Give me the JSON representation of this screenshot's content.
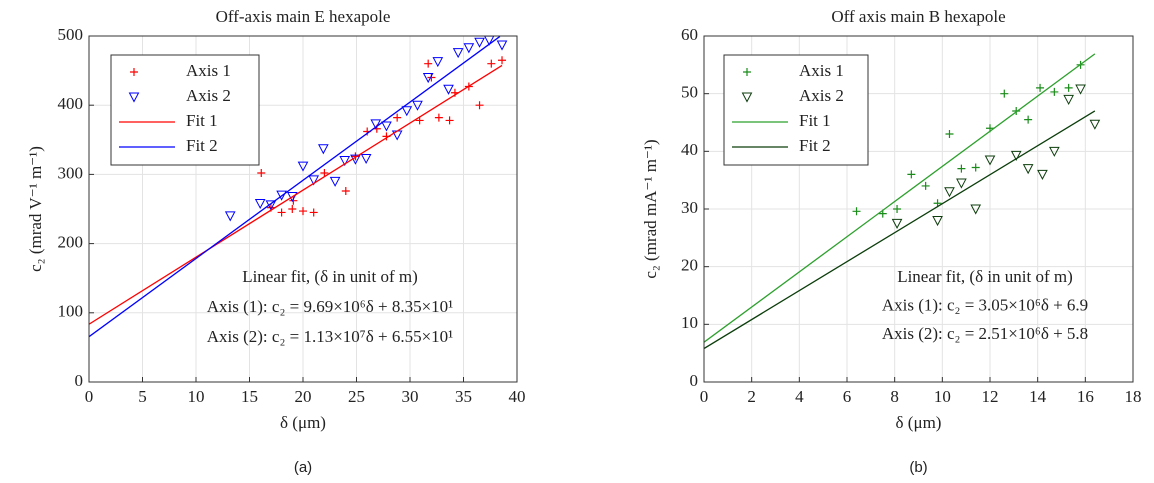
{
  "chart_data": [
    {
      "type": "scatter",
      "title": "Off-axis main E hexapole",
      "x_label": "δ (μm)",
      "y_label": "c₂ (mrad V⁻¹ m⁻¹)",
      "caption": "(a)",
      "xlim": [
        0,
        40
      ],
      "xticks": [
        0,
        5,
        10,
        15,
        20,
        25,
        30,
        35,
        40
      ],
      "ylim": [
        0,
        500
      ],
      "yticks": [
        0,
        100,
        200,
        300,
        400,
        500
      ],
      "grid": true,
      "legend": "top-left",
      "annotations": [
        "Linear fit, (δ in unit of m)",
        "Axis (1): c₂ = 9.69×10⁶δ + 8.35×10¹",
        "Axis (2): c₂ = 1.13×10⁷δ + 6.55×10¹"
      ],
      "series": [
        {
          "name": "Axis 1",
          "color": "#ff0000",
          "marker": "+",
          "x": [
            16.1,
            17.0,
            18.0,
            19.0,
            19.1,
            20.0,
            21.0,
            22.0,
            24.0,
            24.9,
            26.0,
            26.9,
            27.8,
            28.8,
            30.9,
            31.7,
            32.0,
            32.7,
            33.7,
            34.2,
            35.5,
            36.5,
            37.6,
            38.6
          ],
          "values": [
            302,
            252,
            245,
            250,
            262,
            247,
            245,
            302,
            276,
            326,
            362,
            366,
            355,
            382,
            378,
            460,
            440,
            382,
            378,
            418,
            427,
            400,
            460,
            465
          ]
        },
        {
          "name": "Axis 2",
          "color": "#0000ff",
          "marker": "v",
          "x": [
            13.2,
            16.0,
            17.0,
            18.0,
            19.0,
            20.0,
            21.0,
            21.9,
            23.0,
            23.9,
            24.9,
            25.9,
            26.8,
            27.8,
            28.8,
            29.7,
            30.7,
            31.7,
            32.6,
            33.6,
            34.5,
            35.5,
            36.5,
            37.4,
            38.6
          ],
          "values": [
            240,
            258,
            256,
            270,
            268,
            312,
            292,
            337,
            290,
            320,
            322,
            323,
            373,
            370,
            357,
            392,
            400,
            440,
            463,
            423,
            476,
            483,
            491,
            494,
            487
          ]
        },
        {
          "name": "Fit 1",
          "color": "#ff0000",
          "x": [
            0,
            38.6
          ],
          "values": [
            83.5,
            457.5
          ]
        },
        {
          "name": "Fit 2",
          "color": "#0000ff",
          "x": [
            0,
            38.4
          ],
          "values": [
            65.5,
            499.4
          ]
        }
      ]
    },
    {
      "type": "scatter",
      "title": "Off axis main B hexapole",
      "x_label": "δ (μm)",
      "y_label": "c₂ (mrad mA⁻¹ m⁻¹)",
      "caption": "(b)",
      "xlim": [
        0,
        18
      ],
      "xticks": [
        0,
        2,
        4,
        6,
        8,
        10,
        12,
        14,
        16,
        18
      ],
      "ylim": [
        0,
        60
      ],
      "yticks": [
        0,
        10,
        20,
        30,
        40,
        50,
        60
      ],
      "grid": true,
      "legend": "top-left",
      "annotations": [
        "Linear fit, (δ in unit of m)",
        "Axis (1): c₂ = 3.05×10⁶δ + 6.9",
        "Axis (2): c₂ = 2.51×10⁶δ + 5.8"
      ],
      "series": [
        {
          "name": "Axis 1",
          "color": "#1a8c1a",
          "marker": "+",
          "x": [
            6.4,
            7.5,
            8.1,
            8.7,
            9.3,
            9.8,
            10.3,
            10.8,
            11.4,
            12.0,
            12.6,
            13.1,
            13.6,
            14.1,
            14.7,
            15.3,
            15.8
          ],
          "values": [
            29.6,
            29.2,
            30,
            36,
            34,
            31,
            43,
            37,
            37.2,
            44,
            50,
            47,
            45.5,
            51,
            50.3,
            51,
            55
          ]
        },
        {
          "name": "Axis 2",
          "color": "#0d3d0d",
          "marker": "v",
          "x": [
            8.1,
            9.8,
            10.3,
            10.8,
            11.4,
            12.0,
            13.1,
            13.6,
            14.2,
            14.7,
            15.3,
            15.8,
            16.4
          ],
          "values": [
            27.5,
            28,
            33,
            34.5,
            30,
            38.5,
            39.3,
            37,
            36,
            40,
            49,
            50.8,
            44.7
          ]
        },
        {
          "name": "Fit 1",
          "color": "#2ca02c",
          "x": [
            0,
            16.4
          ],
          "values": [
            6.9,
            56.9
          ]
        },
        {
          "name": "Fit 2",
          "color": "#0b3d0b",
          "x": [
            0,
            16.4
          ],
          "values": [
            5.8,
            47.0
          ]
        }
      ]
    }
  ]
}
